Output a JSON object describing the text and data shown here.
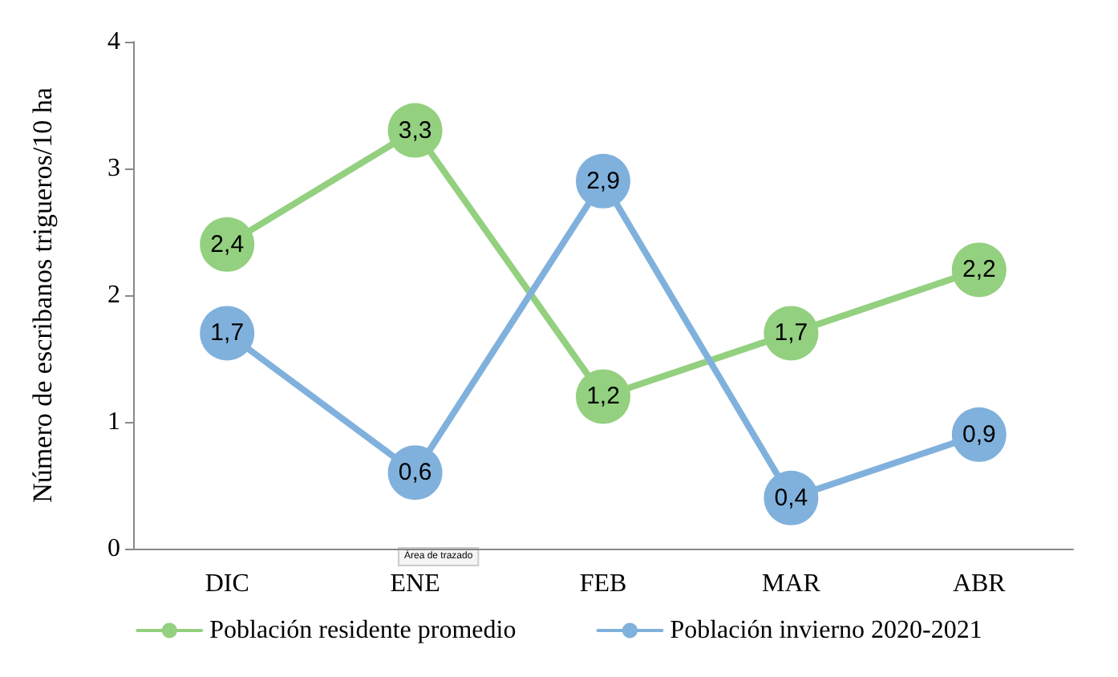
{
  "chart_data": {
    "type": "line",
    "ylabel": "Número de escribanos trigueros/10 ha",
    "categories": [
      "DIC",
      "ENE",
      "FEB",
      "MAR",
      "ABR"
    ],
    "series": [
      {
        "name": "Población residente promedio",
        "color": "#93d07f",
        "values": [
          2.4,
          3.3,
          1.2,
          1.7,
          2.2
        ],
        "value_labels": [
          "2,4",
          "3,3",
          "1,2",
          "1,7",
          "2,2"
        ]
      },
      {
        "name": "Población invierno 2020-2021",
        "color": "#80b1dc",
        "values": [
          1.7,
          0.6,
          2.9,
          0.4,
          0.9
        ],
        "value_labels": [
          "1,7",
          "0,6",
          "2,9",
          "0,4",
          "0,9"
        ]
      }
    ],
    "ylim": [
      0,
      4
    ],
    "yticks": [
      0,
      1,
      2,
      3,
      4
    ],
    "grid": false,
    "legend": "bottom",
    "marker": "circle",
    "line_style": "solid",
    "annotations": [
      "Área de trazado"
    ]
  }
}
